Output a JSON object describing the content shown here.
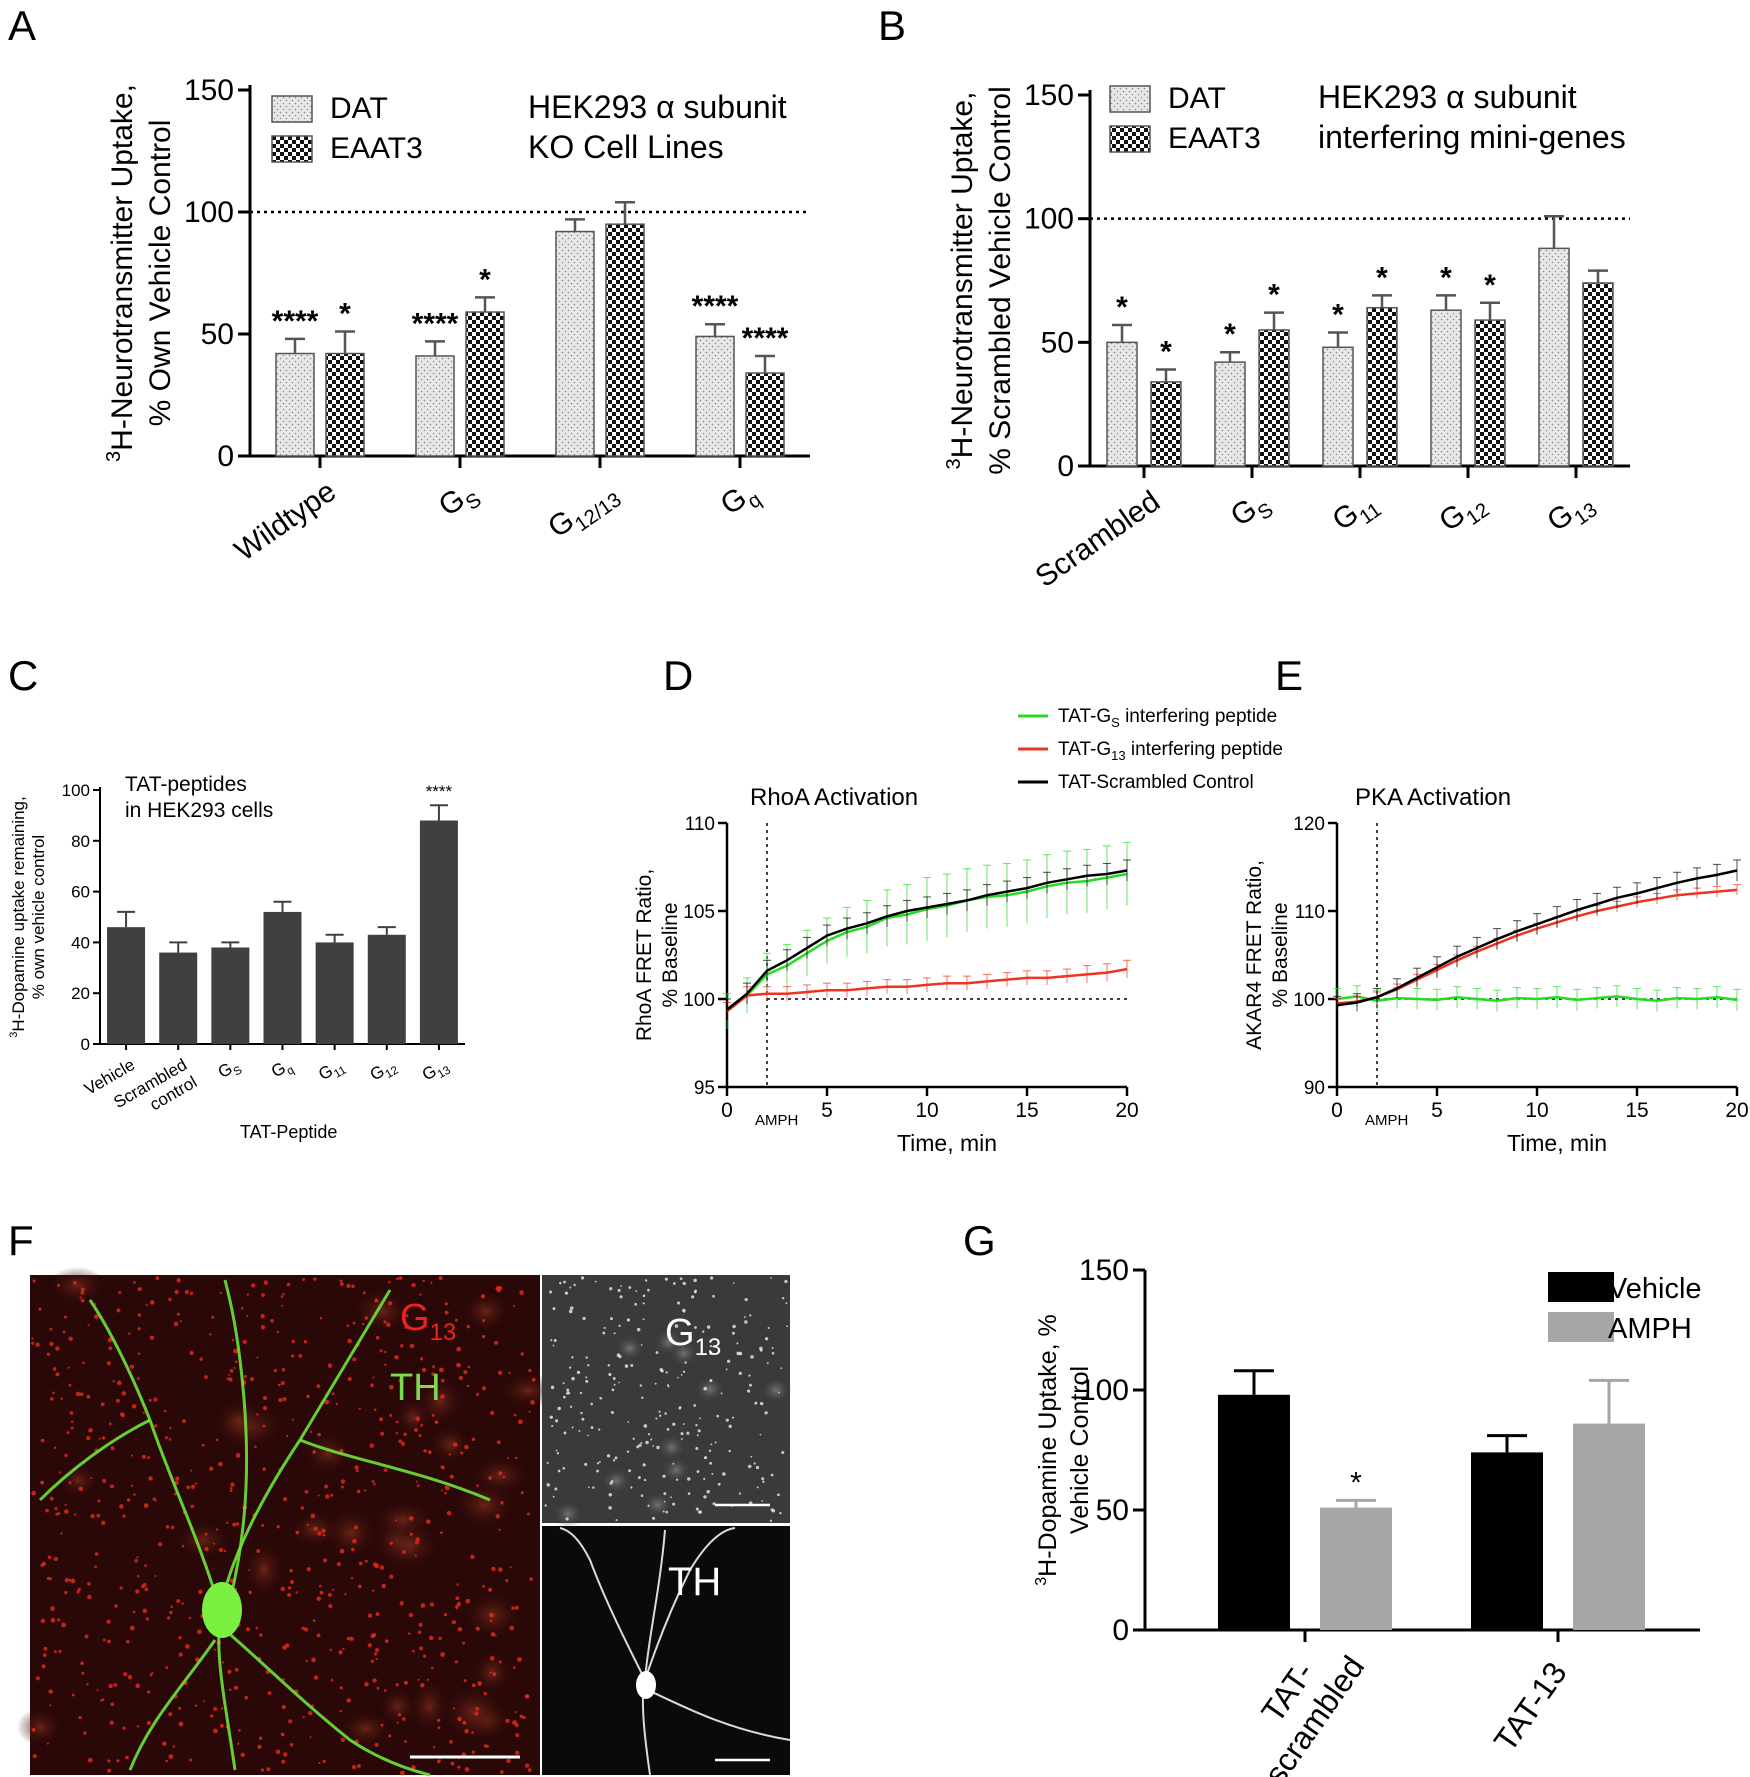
{
  "colors": {
    "dat_fill": "#e3e3e3",
    "eaat3_fill": "#1a1a1a",
    "bar_dark": "#404040",
    "green": "#22dd22",
    "red": "#ee3322",
    "black": "#000000",
    "vehicle": "#000000",
    "amph": "#a6a6a6",
    "micrograph_bg": "#2a0808"
  },
  "panels": {
    "A": {
      "letter": "A"
    },
    "B": {
      "letter": "B"
    },
    "C": {
      "letter": "C"
    },
    "D": {
      "letter": "D"
    },
    "E": {
      "letter": "E"
    },
    "F": {
      "letter": "F"
    },
    "G": {
      "letter": "G"
    }
  },
  "chart_data": [
    {
      "panel": "A",
      "type": "bar",
      "annotation": [
        "HEK293 α subunit",
        "KO Cell Lines"
      ],
      "ylabel": [
        "3H-Neurotransmitter Uptake,",
        "% Own Vehicle Control"
      ],
      "ylim": [
        0,
        150
      ],
      "yticks": [
        0,
        50,
        100,
        150
      ],
      "reference_line": 100,
      "categories": [
        {
          "main": "Wildtype",
          "sub": ""
        },
        {
          "main": "G",
          "sub": "S"
        },
        {
          "main": "G",
          "sub": "12/13"
        },
        {
          "main": "G",
          "sub": "q"
        }
      ],
      "series": [
        {
          "name": "DAT",
          "pattern": "dots",
          "values": [
            42,
            41,
            92,
            49
          ],
          "errors": [
            6,
            6,
            5,
            5
          ],
          "sig": [
            "****",
            "****",
            "",
            "****"
          ]
        },
        {
          "name": "EAAT3",
          "pattern": "checker",
          "values": [
            42,
            59,
            95,
            34
          ],
          "errors": [
            9,
            6,
            9,
            7
          ],
          "sig": [
            "*",
            "*",
            "",
            "****"
          ]
        }
      ]
    },
    {
      "panel": "B",
      "type": "bar",
      "annotation": [
        "HEK293 α subunit",
        "interfering mini-genes"
      ],
      "ylabel": [
        "3H-Neurotransmitter Uptake,",
        "% Scrambled Vehicle Control"
      ],
      "ylim": [
        0,
        150
      ],
      "yticks": [
        0,
        50,
        100,
        150
      ],
      "reference_line": 100,
      "categories": [
        {
          "main": "Scrambled",
          "sub": ""
        },
        {
          "main": "G",
          "sub": "S"
        },
        {
          "main": "G",
          "sub": "11"
        },
        {
          "main": "G",
          "sub": "12"
        },
        {
          "main": "G",
          "sub": "13"
        }
      ],
      "series": [
        {
          "name": "DAT",
          "pattern": "dots",
          "values": [
            50,
            42,
            48,
            63,
            88
          ],
          "errors": [
            7,
            4,
            6,
            6,
            13
          ],
          "sig": [
            "*",
            "*",
            "*",
            "*",
            ""
          ]
        },
        {
          "name": "EAAT3",
          "pattern": "checker",
          "values": [
            34,
            55,
            64,
            59,
            74
          ],
          "errors": [
            5,
            7,
            5,
            7,
            5
          ],
          "sig": [
            "*",
            "*",
            "*",
            "*",
            ""
          ]
        }
      ]
    },
    {
      "panel": "C",
      "type": "bar",
      "annotation": [
        "TAT-peptides",
        "in HEK293 cells"
      ],
      "ylabel": [
        "3H-Dopamine uptake remaining,",
        "% own vehicle control"
      ],
      "xlabel": "TAT-Peptide",
      "ylim": [
        0,
        100
      ],
      "yticks": [
        0,
        20,
        40,
        60,
        80,
        100
      ],
      "categories": [
        {
          "main": "Vehicle",
          "sub": ""
        },
        {
          "main": "Scrambled",
          "main2": "control",
          "sub": ""
        },
        {
          "main": "G",
          "sub": "S"
        },
        {
          "main": "G",
          "sub": "q"
        },
        {
          "main": "G",
          "sub": "11"
        },
        {
          "main": "G",
          "sub": "12"
        },
        {
          "main": "G",
          "sub": "13"
        }
      ],
      "values": [
        46,
        36,
        38,
        52,
        40,
        43,
        88
      ],
      "errors": [
        6,
        4,
        2,
        4,
        3,
        3,
        6
      ],
      "sig": [
        "",
        "",
        "",
        "",
        "",
        "",
        "****"
      ]
    },
    {
      "panel": "D",
      "type": "line",
      "title": "RhoA Activation",
      "ylabel": [
        "RhoA FRET Ratio,",
        "% Baseline"
      ],
      "xlabel": "Time, min",
      "xlim": [
        0,
        20
      ],
      "ylim": [
        95,
        110
      ],
      "xticks": [
        0,
        5,
        10,
        15,
        20
      ],
      "yticks": [
        95,
        100,
        105,
        110
      ],
      "reference_line": 100,
      "event_line": 2,
      "event_label": "AMPH",
      "series": [
        {
          "name": "TAT-GS interfering peptide",
          "color": "green",
          "x": [
            0,
            1,
            2,
            3,
            4,
            5,
            6,
            7,
            8,
            9,
            10,
            11,
            12,
            13,
            14,
            15,
            16,
            17,
            18,
            19,
            20
          ],
          "y": [
            99.3,
            100.2,
            101.4,
            101.9,
            102.6,
            103.3,
            103.8,
            104.1,
            104.6,
            104.8,
            105.1,
            105.3,
            105.6,
            105.8,
            105.9,
            106.1,
            106.4,
            106.6,
            106.7,
            106.9,
            107.1
          ],
          "err": [
            1.0,
            1.0,
            1.2,
            1.2,
            1.3,
            1.3,
            1.4,
            1.5,
            1.6,
            1.7,
            1.8,
            1.8,
            1.8,
            1.8,
            1.8,
            1.8,
            1.8,
            1.8,
            1.8,
            1.8,
            1.8
          ]
        },
        {
          "name": "TAT-G13 interfering peptide",
          "color": "red",
          "x": [
            0,
            1,
            2,
            3,
            4,
            5,
            6,
            7,
            8,
            9,
            10,
            11,
            12,
            13,
            14,
            15,
            16,
            17,
            18,
            19,
            20
          ],
          "y": [
            99.3,
            100.2,
            100.3,
            100.3,
            100.4,
            100.5,
            100.5,
            100.6,
            100.7,
            100.7,
            100.8,
            100.9,
            100.9,
            101.0,
            101.1,
            101.2,
            101.2,
            101.3,
            101.4,
            101.5,
            101.7
          ],
          "err": [
            0.5,
            0.5,
            0.4,
            0.4,
            0.4,
            0.4,
            0.4,
            0.4,
            0.4,
            0.4,
            0.4,
            0.4,
            0.4,
            0.4,
            0.4,
            0.4,
            0.4,
            0.4,
            0.5,
            0.5,
            0.5
          ]
        },
        {
          "name": "TAT-Scrambled Control",
          "color": "black",
          "x": [
            0,
            1,
            2,
            3,
            4,
            5,
            6,
            7,
            8,
            9,
            10,
            11,
            12,
            13,
            14,
            15,
            16,
            17,
            18,
            19,
            20
          ],
          "y": [
            99.4,
            100.3,
            101.6,
            102.2,
            102.9,
            103.6,
            104.0,
            104.3,
            104.7,
            105.0,
            105.2,
            105.4,
            105.6,
            105.9,
            106.1,
            106.3,
            106.6,
            106.8,
            107.0,
            107.1,
            107.3
          ],
          "err": [
            0.6,
            0.6,
            0.6,
            0.6,
            0.6,
            0.6,
            0.6,
            0.6,
            0.6,
            0.6,
            0.6,
            0.6,
            0.6,
            0.6,
            0.6,
            0.6,
            0.6,
            0.6,
            0.6,
            0.6,
            0.6
          ]
        }
      ]
    },
    {
      "panel": "E",
      "type": "line",
      "title": "PKA Activation",
      "ylabel": [
        "AKAR4 FRET Ratio,",
        "% Baseline"
      ],
      "xlabel": "Time, min",
      "xlim": [
        0,
        20
      ],
      "ylim": [
        90,
        120
      ],
      "xticks": [
        0,
        5,
        10,
        15,
        20
      ],
      "yticks": [
        90,
        100,
        110,
        120
      ],
      "reference_line": 100,
      "event_line": 2,
      "event_label": "AMPH",
      "series": [
        {
          "name": "TAT-GS interfering peptide",
          "color": "green",
          "x": [
            0,
            1,
            2,
            3,
            4,
            5,
            6,
            7,
            8,
            9,
            10,
            11,
            12,
            13,
            14,
            15,
            16,
            17,
            18,
            19,
            20
          ],
          "y": [
            100.0,
            100.3,
            99.8,
            100.1,
            100.0,
            99.9,
            100.2,
            100.0,
            99.8,
            100.1,
            100.0,
            100.2,
            99.9,
            100.1,
            100.3,
            100.0,
            99.8,
            100.1,
            100.0,
            100.2,
            99.9
          ],
          "err": [
            1.2,
            1.2,
            1.2,
            1.2,
            1.2,
            1.2,
            1.2,
            1.2,
            1.2,
            1.2,
            1.2,
            1.2,
            1.2,
            1.2,
            1.2,
            1.2,
            1.2,
            1.2,
            1.2,
            1.2,
            1.2
          ]
        },
        {
          "name": "TAT-G13 interfering peptide",
          "color": "red",
          "x": [
            0,
            1,
            2,
            3,
            4,
            5,
            6,
            7,
            8,
            9,
            10,
            11,
            12,
            13,
            14,
            15,
            16,
            17,
            18,
            19,
            20
          ],
          "y": [
            99.5,
            99.7,
            100.2,
            101.1,
            102.2,
            103.3,
            104.4,
            105.4,
            106.3,
            107.2,
            108.0,
            108.7,
            109.4,
            110.0,
            110.5,
            111.0,
            111.4,
            111.8,
            112.0,
            112.2,
            112.4
          ],
          "err": [
            0.6,
            0.6,
            0.6,
            0.6,
            0.6,
            0.6,
            0.6,
            0.6,
            0.6,
            0.6,
            0.6,
            0.6,
            0.6,
            0.6,
            0.6,
            0.6,
            0.6,
            0.6,
            0.6,
            0.6,
            0.6
          ]
        },
        {
          "name": "TAT-Scrambled Control",
          "color": "black",
          "x": [
            0,
            1,
            2,
            3,
            4,
            5,
            6,
            7,
            8,
            9,
            10,
            11,
            12,
            13,
            14,
            15,
            16,
            17,
            18,
            19,
            20
          ],
          "y": [
            99.3,
            99.6,
            100.2,
            101.2,
            102.4,
            103.6,
            104.8,
            105.8,
            106.8,
            107.7,
            108.5,
            109.3,
            110.1,
            110.8,
            111.5,
            112.0,
            112.6,
            113.2,
            113.7,
            114.1,
            114.6
          ],
          "err": [
            1.0,
            1.0,
            1.0,
            1.1,
            1.1,
            1.2,
            1.2,
            1.2,
            1.2,
            1.2,
            1.2,
            1.2,
            1.2,
            1.2,
            1.2,
            1.2,
            1.2,
            1.2,
            1.2,
            1.2,
            1.2
          ]
        }
      ]
    },
    {
      "panel": "G",
      "type": "bar",
      "ylabel": [
        "3H-Dopamine Uptake, %",
        "Vehicle Control"
      ],
      "ylim": [
        0,
        150
      ],
      "yticks": [
        0,
        50,
        100,
        150
      ],
      "categories": [
        {
          "line1": "TAT-",
          "line2": "scrambled"
        },
        {
          "line1": "TAT-13",
          "line2": ""
        }
      ],
      "series": [
        {
          "name": "Vehicle",
          "values": [
            98,
            74
          ],
          "errors": [
            10,
            7
          ],
          "sig": [
            "",
            ""
          ]
        },
        {
          "name": "AMPH",
          "values": [
            51,
            86
          ],
          "errors": [
            3,
            18
          ],
          "sig": [
            "*",
            ""
          ]
        }
      ]
    }
  ],
  "legend_de": [
    {
      "pre": "TAT-G",
      "sub": "S",
      "post": " interfering peptide",
      "color": "green"
    },
    {
      "pre": "TAT-G",
      "sub": "13",
      "post": " interfering peptide",
      "color": "red"
    },
    {
      "pre": "TAT-Scrambled Control",
      "sub": "",
      "post": "",
      "color": "black"
    }
  ],
  "panel_f": {
    "merge_label_g": "G",
    "merge_label_g_sub": "13",
    "merge_label_th": "TH",
    "inset_top_label": "G",
    "inset_top_sub": "13",
    "inset_bottom_label": "TH"
  }
}
